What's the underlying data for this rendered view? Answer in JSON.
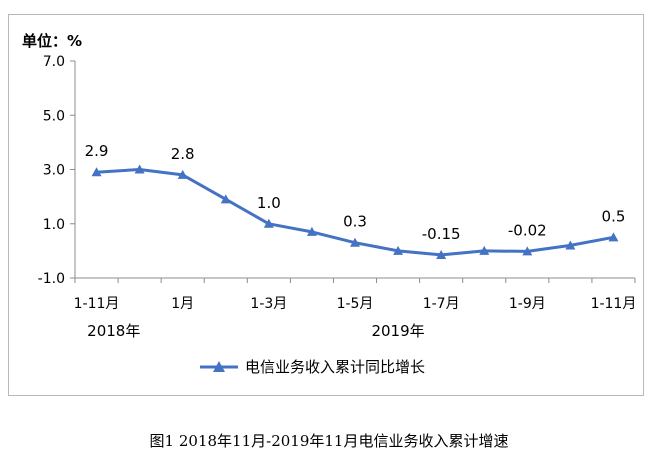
{
  "unit_label": "单位：%",
  "caption": "图1   2018年11月-2019年11月电信业务收入累计增速",
  "chart_data": {
    "type": "line",
    "ylim": [
      -1.0,
      7.0
    ],
    "y_ticks": [
      "7.0",
      "5.0",
      "3.0",
      "1.0",
      "-1.0"
    ],
    "y_tick_values": [
      7.0,
      5.0,
      3.0,
      1.0,
      -1.0
    ],
    "x_tick_labels": [
      "1-11月",
      "1月",
      "1-3月",
      "1-5月",
      "1-7月",
      "1-9月",
      "1-11月"
    ],
    "x_tick_indices": [
      0,
      2,
      4,
      6,
      8,
      10,
      12
    ],
    "year_labels": [
      {
        "text": "2018年",
        "index": 0.4
      },
      {
        "text": "2019年",
        "index": 7
      }
    ],
    "grid": false,
    "legend": "bottom",
    "series": [
      {
        "name": "电信业务收入累计同比增长",
        "color": "#4472c4",
        "values": [
          2.9,
          3.0,
          2.8,
          1.9,
          1.0,
          0.7,
          0.3,
          0.0,
          -0.15,
          0.0,
          -0.02,
          0.2,
          0.5
        ],
        "labels": {
          "0": "2.9",
          "2": "2.8",
          "4": "1.0",
          "6": "0.3",
          "8": "-0.15",
          "10": "-0.02",
          "12": "0.5"
        }
      }
    ]
  }
}
